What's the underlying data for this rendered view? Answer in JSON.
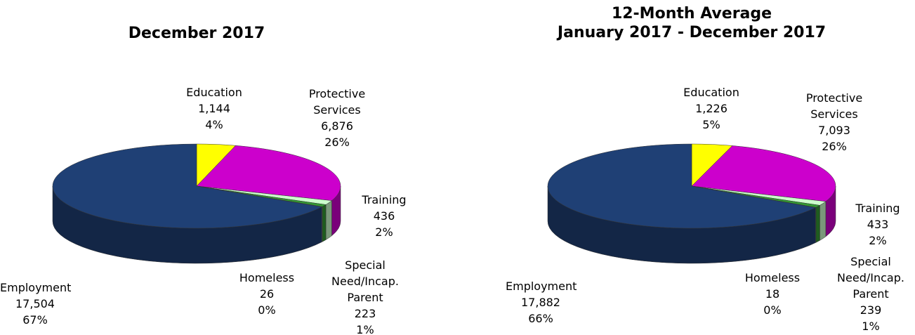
{
  "chart_data": [
    {
      "type": "pie3d",
      "title": "December 2017",
      "categories": [
        "Education",
        "Protective Services",
        "Training",
        "Special Need/Incap. Parent",
        "Homeless",
        "Employment"
      ],
      "values": [
        1144,
        6876,
        436,
        223,
        26,
        17504
      ],
      "value_labels": [
        "1,144",
        "6,876",
        "436",
        "223",
        "26",
        "17,504"
      ],
      "percent_labels": [
        "4%",
        "26%",
        "2%",
        "1%",
        "0%",
        "67%"
      ],
      "colors": [
        "#ffff00",
        "#cc00cc",
        "#ccffcc",
        "#339933",
        "#ffffff",
        "#1f4075"
      ]
    },
    {
      "type": "pie3d",
      "title": "12-Month Average",
      "subtitle": "January 2017 - December 2017",
      "categories": [
        "Education",
        "Protective Services",
        "Training",
        "Special Need/Incap. Parent",
        "Homeless",
        "Employment"
      ],
      "values": [
        1226,
        7093,
        433,
        239,
        18,
        17882
      ],
      "value_labels": [
        "1,226",
        "7,093",
        "433",
        "239",
        "18",
        "17,882"
      ],
      "percent_labels": [
        "5%",
        "26%",
        "2%",
        "1%",
        "0%",
        "66%"
      ],
      "colors": [
        "#ffff00",
        "#cc00cc",
        "#ccffcc",
        "#339933",
        "#ffffff",
        "#1f4075"
      ]
    }
  ]
}
